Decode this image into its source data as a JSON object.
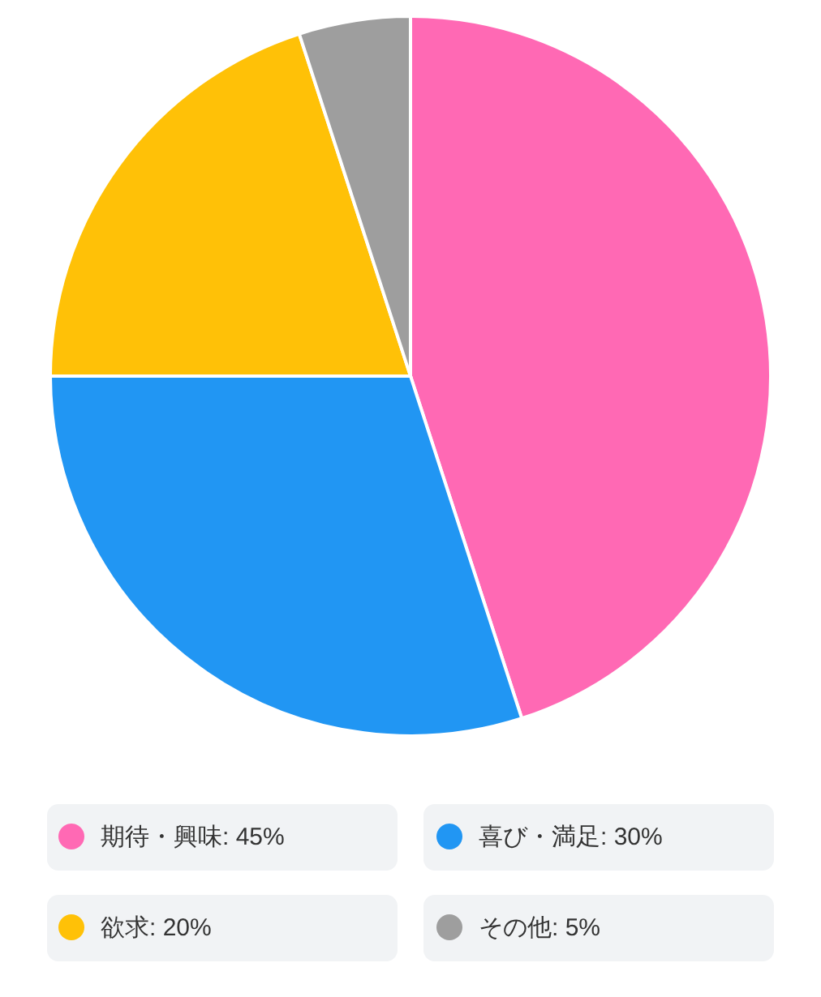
{
  "chart_data": {
    "type": "pie",
    "categories": [
      "期待・興味: 45%",
      "喜び・満足: 30%",
      "欲求: 20%",
      "その他: 5%"
    ],
    "values": [
      45,
      30,
      20,
      5
    ],
    "colors": [
      "#ff69b4",
      "#2196f3",
      "#ffc107",
      "#9e9e9e"
    ],
    "legend": "bottom"
  }
}
